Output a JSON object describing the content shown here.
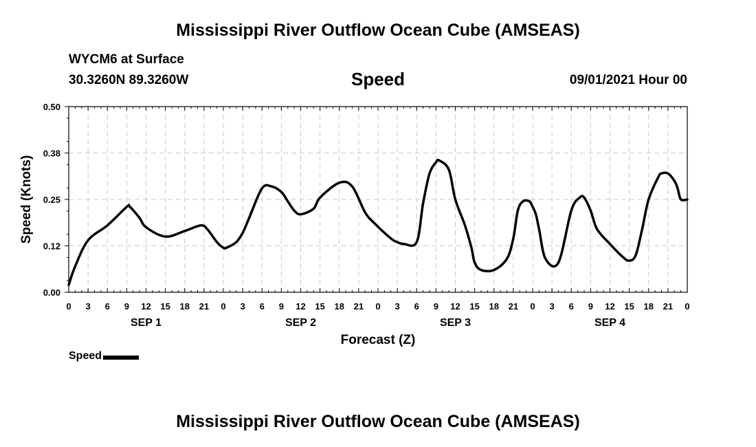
{
  "header": {
    "title": "Mississippi River Outflow Ocean Cube (AMSEAS)",
    "station": "WYCM6 at Surface",
    "coords": "30.3260N  89.3260W",
    "variable": "Speed",
    "datetime": "09/01/2021 Hour 00"
  },
  "footer": {
    "title": "Mississippi River Outflow Ocean Cube (AMSEAS)"
  },
  "legend": {
    "label": "Speed",
    "color": "#000000"
  },
  "chart_data": {
    "type": "line",
    "xlabel": "Forecast (Z)",
    "ylabel": "Speed (Knots)",
    "ylim": [
      0,
      0.5
    ],
    "xlim": [
      0,
      96
    ],
    "yticks": [
      "0.00",
      "0.12",
      "0.25",
      "0.38",
      "0.50"
    ],
    "xtick_labels": [
      "0",
      "3",
      "6",
      "9",
      "12",
      "15",
      "18",
      "21",
      "0",
      "3",
      "6",
      "9",
      "12",
      "15",
      "18",
      "21",
      "0",
      "3",
      "6",
      "9",
      "12",
      "15",
      "18",
      "21",
      "0",
      "3",
      "6",
      "9",
      "12",
      "15",
      "18",
      "21",
      "0"
    ],
    "day_labels": [
      "SEP 1",
      "SEP 2",
      "SEP 3",
      "SEP 4"
    ],
    "grid": true,
    "series": [
      {
        "name": "Speed",
        "color": "#000000",
        "x": [
          0,
          1,
          3,
          6,
          9,
          9.5,
          11,
          12,
          15,
          18,
          20.5,
          21.5,
          23,
          24,
          24.5,
          26,
          27,
          28,
          30,
          31.5,
          33,
          34,
          35,
          36,
          38,
          39,
          42,
          44,
          46,
          47.5,
          50,
          51,
          52,
          54,
          55,
          56,
          57,
          57.5,
          59,
          60,
          61.5,
          62.5,
          63,
          64,
          66,
          68,
          69,
          69.7,
          70.5,
          71.5,
          72,
          72.5,
          73,
          74,
          76,
          78,
          79.3,
          80,
          81,
          82,
          84,
          86,
          87,
          88,
          89,
          90,
          91.5,
          92,
          93,
          94,
          94.5,
          95,
          96
        ],
        "values": [
          0.02,
          0.07,
          0.14,
          0.18,
          0.23,
          0.23,
          0.2,
          0.175,
          0.15,
          0.165,
          0.18,
          0.17,
          0.135,
          0.12,
          0.12,
          0.135,
          0.16,
          0.2,
          0.28,
          0.285,
          0.27,
          0.245,
          0.22,
          0.21,
          0.225,
          0.255,
          0.295,
          0.285,
          0.215,
          0.185,
          0.145,
          0.135,
          0.13,
          0.135,
          0.24,
          0.32,
          0.35,
          0.355,
          0.33,
          0.25,
          0.18,
          0.12,
          0.08,
          0.06,
          0.06,
          0.09,
          0.145,
          0.22,
          0.245,
          0.245,
          0.23,
          0.21,
          0.17,
          0.09,
          0.08,
          0.22,
          0.255,
          0.255,
          0.22,
          0.17,
          0.13,
          0.095,
          0.085,
          0.1,
          0.17,
          0.25,
          0.31,
          0.32,
          0.32,
          0.3,
          0.28,
          0.25,
          0.25
        ]
      }
    ]
  }
}
